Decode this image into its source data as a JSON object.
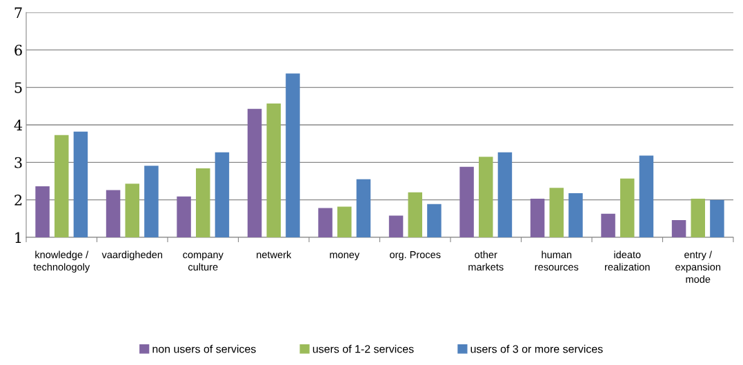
{
  "chart_data": {
    "type": "bar",
    "categories": [
      "knowledge / technologoly",
      "vaardigheden",
      "company culture",
      "netwerk",
      "money",
      "org. Proces",
      "other markets",
      "human resources",
      "ideato realization",
      "entry / expansion mode"
    ],
    "series": [
      {
        "name": "non users of services",
        "color": "#8064a2",
        "values": [
          2.36,
          2.26,
          2.09,
          4.43,
          1.78,
          1.58,
          2.88,
          2.03,
          1.63,
          1.46
        ]
      },
      {
        "name": "users of 1-2 services",
        "color": "#9bbb59",
        "values": [
          3.73,
          2.43,
          2.84,
          4.57,
          1.82,
          2.2,
          3.15,
          2.32,
          2.57,
          2.03
        ]
      },
      {
        "name": "users of 3 or more services",
        "color": "#4f81bd",
        "values": [
          3.82,
          2.91,
          3.27,
          5.37,
          2.55,
          1.89,
          3.27,
          2.18,
          3.18,
          2.0
        ]
      }
    ],
    "ylim": [
      1,
      7
    ],
    "yticks": [
      1,
      2,
      3,
      4,
      5,
      6,
      7
    ],
    "grid": "y",
    "legend": "bottom"
  }
}
